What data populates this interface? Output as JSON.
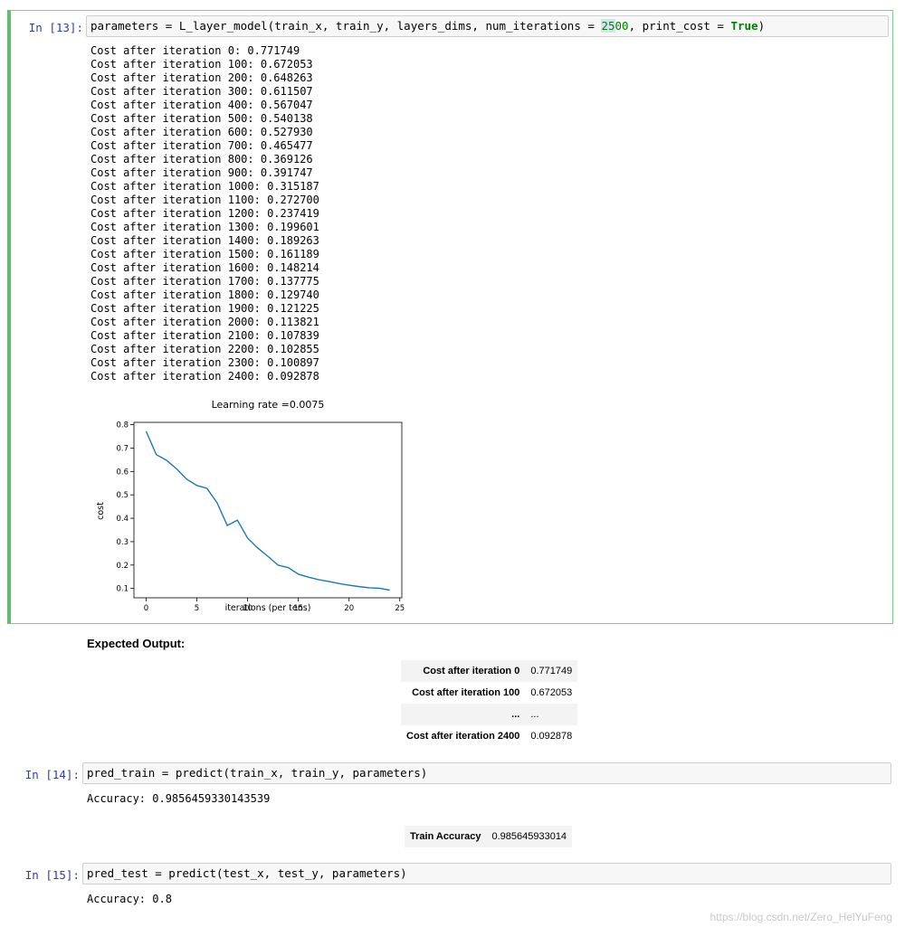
{
  "cell13": {
    "prompt": "In [13]:",
    "code": {
      "part1": "parameters = L_layer_model(train_x, train_y, layers_dims, num_iterations = ",
      "num_hl": "25",
      "num_rest": "00",
      "part2": ", print_cost = ",
      "kw": "True",
      "part3": ")"
    },
    "output_lines": [
      "Cost after iteration 0: 0.771749",
      "Cost after iteration 100: 0.672053",
      "Cost after iteration 200: 0.648263",
      "Cost after iteration 300: 0.611507",
      "Cost after iteration 400: 0.567047",
      "Cost after iteration 500: 0.540138",
      "Cost after iteration 600: 0.527930",
      "Cost after iteration 700: 0.465477",
      "Cost after iteration 800: 0.369126",
      "Cost after iteration 900: 0.391747",
      "Cost after iteration 1000: 0.315187",
      "Cost after iteration 1100: 0.272700",
      "Cost after iteration 1200: 0.237419",
      "Cost after iteration 1300: 0.199601",
      "Cost after iteration 1400: 0.189263",
      "Cost after iteration 1500: 0.161189",
      "Cost after iteration 1600: 0.148214",
      "Cost after iteration 1700: 0.137775",
      "Cost after iteration 1800: 0.129740",
      "Cost after iteration 1900: 0.121225",
      "Cost after iteration 2000: 0.113821",
      "Cost after iteration 2100: 0.107839",
      "Cost after iteration 2200: 0.102855",
      "Cost after iteration 2300: 0.100897",
      "Cost after iteration 2400: 0.092878"
    ]
  },
  "chart_data": {
    "type": "line",
    "title": "Learning rate =0.0075",
    "xlabel": "iterations (per tens)",
    "ylabel": "cost",
    "xlim": [
      -1.2,
      25.2
    ],
    "ylim": [
      0.06,
      0.81
    ],
    "x_ticks": [
      0,
      5,
      10,
      15,
      20,
      25
    ],
    "y_ticks": [
      0.1,
      0.2,
      0.3,
      0.4,
      0.5,
      0.6,
      0.7,
      0.8
    ],
    "grid": false,
    "line_color": "#1f77b4",
    "x": [
      0,
      1,
      2,
      3,
      4,
      5,
      6,
      7,
      8,
      9,
      10,
      11,
      12,
      13,
      14,
      15,
      16,
      17,
      18,
      19,
      20,
      21,
      22,
      23,
      24
    ],
    "values": [
      0.771749,
      0.672053,
      0.648263,
      0.611507,
      0.567047,
      0.540138,
      0.52793,
      0.465477,
      0.369126,
      0.391747,
      0.315187,
      0.2727,
      0.237419,
      0.199601,
      0.189263,
      0.161189,
      0.148214,
      0.137775,
      0.12974,
      0.121225,
      0.113821,
      0.107839,
      0.102855,
      0.100897,
      0.092878
    ]
  },
  "expected": {
    "heading": "Expected Output:",
    "rows": [
      {
        "key": "Cost after iteration 0",
        "value": "0.771749"
      },
      {
        "key": "Cost after iteration 100",
        "value": "0.672053"
      },
      {
        "key": "...",
        "value": "..."
      },
      {
        "key": "Cost after iteration 2400",
        "value": "0.092878"
      }
    ]
  },
  "cell14": {
    "prompt": "In [14]:",
    "code": "pred_train = predict(train_x, train_y, parameters)",
    "output": "Accuracy: 0.9856459330143539"
  },
  "train_acc": {
    "key": "Train Accuracy",
    "value": "0.985645933014"
  },
  "cell15": {
    "prompt": "In [15]:",
    "code": "pred_test = predict(test_x, test_y, parameters)",
    "output": "Accuracy: 0.8"
  },
  "watermark": "https://blog.csdn.net/Zero_HelYuFeng"
}
